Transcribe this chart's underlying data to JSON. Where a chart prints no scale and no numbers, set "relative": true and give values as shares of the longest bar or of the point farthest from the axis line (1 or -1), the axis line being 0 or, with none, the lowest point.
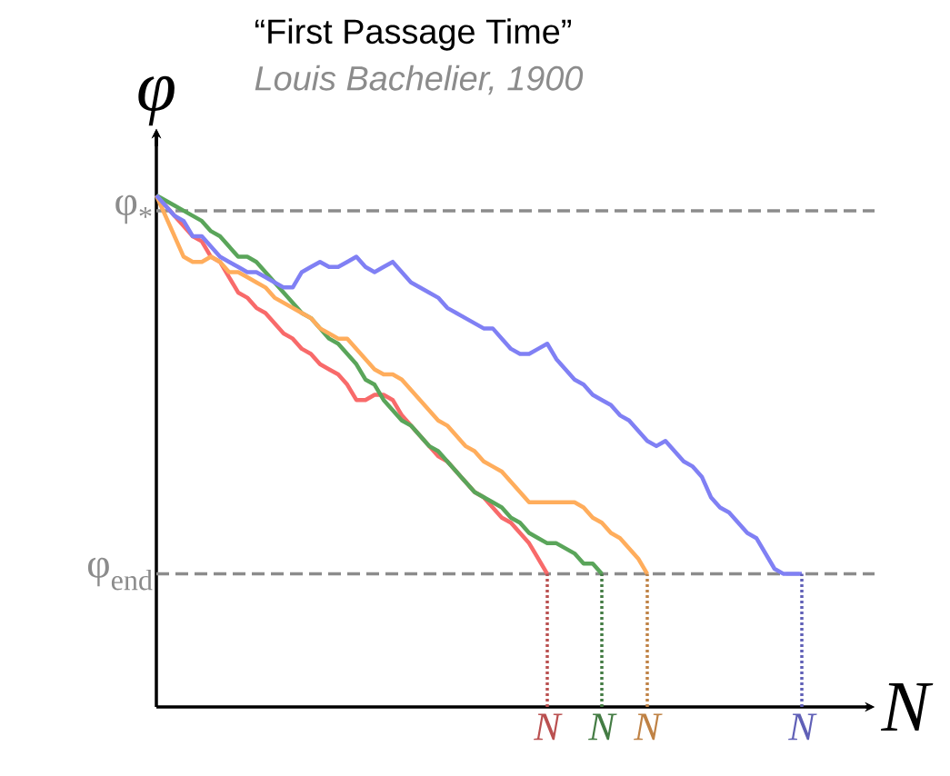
{
  "chart_data": {
    "type": "line",
    "title": "“First Passage Time”",
    "subtitle": "Louis Bachelier, 1900",
    "xlabel": "N",
    "ylabel": "φ",
    "relative": true,
    "marker": "none",
    "line_style": "solid",
    "categories": [
      null,
      null,
      null,
      null,
      null,
      null,
      null,
      null,
      null,
      null,
      null,
      null,
      null,
      null,
      null,
      null,
      null,
      null,
      null,
      null,
      null,
      null,
      null,
      null,
      null,
      null,
      null,
      null,
      null,
      null,
      null,
      null,
      null,
      null,
      null,
      null,
      null,
      null,
      null,
      null,
      null,
      null,
      null,
      "N",
      null,
      null,
      null,
      null,
      null,
      "N",
      null,
      null,
      null,
      null,
      "N",
      null,
      null,
      null,
      null,
      null,
      null,
      null,
      null,
      null,
      null,
      null,
      null,
      null,
      null,
      null,
      null,
      "N",
      null,
      null,
      null,
      null,
      null,
      null,
      null,
      null
    ],
    "series": [
      {
        "color": "#f86a6a",
        "values": [
          1.0,
          0.98,
          0.96,
          0.94,
          0.92,
          0.91,
          0.88,
          0.87,
          0.84,
          0.81,
          0.8,
          0.78,
          0.77,
          0.75,
          0.73,
          0.72,
          0.7,
          0.69,
          0.67,
          0.66,
          0.65,
          0.63,
          0.6,
          0.6,
          0.61,
          0.61,
          0.6,
          0.57,
          0.55,
          0.53,
          0.51,
          0.49,
          0.48,
          0.46,
          0.44,
          0.42,
          0.41,
          0.39,
          0.37,
          0.36,
          0.34,
          0.32,
          0.29,
          0.26,
          null,
          null,
          null,
          null,
          null,
          null,
          null,
          null,
          null,
          null,
          null,
          null,
          null,
          null,
          null,
          null,
          null,
          null,
          null,
          null,
          null,
          null,
          null,
          null,
          null,
          null,
          null,
          null,
          null,
          null,
          null,
          null,
          null,
          null,
          null,
          null
        ]
      },
      {
        "color": "#5aa55a",
        "values": [
          1.0,
          0.99,
          0.98,
          0.97,
          0.96,
          0.95,
          0.93,
          0.92,
          0.9,
          0.88,
          0.88,
          0.87,
          0.85,
          0.83,
          0.81,
          0.79,
          0.77,
          0.76,
          0.74,
          0.72,
          0.71,
          0.69,
          0.67,
          0.64,
          0.63,
          0.6,
          0.58,
          0.56,
          0.55,
          0.53,
          0.51,
          0.5,
          0.48,
          0.46,
          0.44,
          0.42,
          0.41,
          0.4,
          0.39,
          0.37,
          0.36,
          0.34,
          0.33,
          0.32,
          0.32,
          0.31,
          0.3,
          0.28,
          0.28,
          0.26,
          null,
          null,
          null,
          null,
          null,
          null,
          null,
          null,
          null,
          null,
          null,
          null,
          null,
          null,
          null,
          null,
          null,
          null,
          null,
          null,
          null,
          null,
          null,
          null,
          null,
          null,
          null,
          null,
          null,
          null
        ]
      },
      {
        "color": "#ffad5c",
        "values": [
          1.0,
          0.96,
          0.92,
          0.88,
          0.87,
          0.87,
          0.88,
          0.87,
          0.85,
          0.85,
          0.84,
          0.83,
          0.82,
          0.8,
          0.79,
          0.78,
          0.77,
          0.76,
          0.74,
          0.73,
          0.72,
          0.72,
          0.7,
          0.68,
          0.66,
          0.65,
          0.65,
          0.64,
          0.62,
          0.6,
          0.58,
          0.56,
          0.55,
          0.53,
          0.51,
          0.5,
          0.48,
          0.47,
          0.46,
          0.44,
          0.42,
          0.4,
          0.4,
          0.4,
          0.4,
          0.4,
          0.4,
          0.39,
          0.37,
          0.36,
          0.34,
          0.33,
          0.31,
          0.29,
          0.26,
          null,
          null,
          null,
          null,
          null,
          null,
          null,
          null,
          null,
          null,
          null,
          null,
          null,
          null,
          null,
          null,
          null,
          null,
          null,
          null,
          null,
          null,
          null,
          null,
          null
        ]
      },
      {
        "color": "#8080f4",
        "values": [
          1.0,
          0.98,
          0.96,
          0.95,
          0.92,
          0.92,
          0.9,
          0.88,
          0.87,
          0.86,
          0.85,
          0.85,
          0.84,
          0.83,
          0.82,
          0.82,
          0.85,
          0.86,
          0.87,
          0.86,
          0.86,
          0.87,
          0.88,
          0.86,
          0.85,
          0.86,
          0.87,
          0.85,
          0.83,
          0.82,
          0.81,
          0.8,
          0.78,
          0.77,
          0.76,
          0.75,
          0.74,
          0.74,
          0.72,
          0.7,
          0.69,
          0.69,
          0.7,
          0.71,
          0.68,
          0.66,
          0.64,
          0.63,
          0.61,
          0.6,
          0.59,
          0.57,
          0.56,
          0.54,
          0.52,
          0.51,
          0.52,
          0.5,
          0.48,
          0.47,
          0.45,
          0.41,
          0.39,
          0.38,
          0.36,
          0.34,
          0.33,
          0.3,
          0.27,
          0.26,
          0.26,
          0.26,
          null,
          null,
          null,
          null,
          null,
          null,
          null,
          null
        ]
      }
    ],
    "ref_lines": [
      {
        "axis": "y",
        "value": 0.97,
        "label": "φ$_{*}$",
        "color": "#8c8c8c",
        "line_style": "dashed"
      },
      {
        "axis": "y",
        "value": 0.26,
        "label": "φ$_{end}$",
        "color": "#8c8c8c",
        "line_style": "dashed"
      }
    ]
  }
}
